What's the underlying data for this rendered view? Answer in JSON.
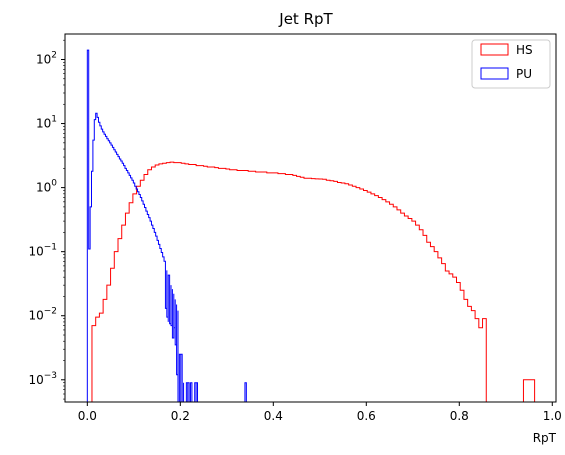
{
  "chart_data": {
    "type": "histogram",
    "title": "Jet RpT",
    "xlabel": "RpT",
    "ylabel": "",
    "xlim": [
      -0.048,
      1.008
    ],
    "ylim": [
      0.00045,
      250
    ],
    "yscale": "log",
    "grid": false,
    "legend": {
      "placement": "top-right",
      "entries": [
        "HS",
        "PU"
      ]
    },
    "xticks": [
      0.0,
      0.2,
      0.4,
      0.6,
      0.8,
      1.0
    ],
    "xtick_labels": [
      "0.0",
      "0.2",
      "0.4",
      "0.6",
      "0.8",
      "1.0"
    ],
    "yticks": [
      0.001,
      0.01,
      0.1,
      1,
      10,
      100
    ],
    "ytick_labels": [
      {
        "base": "10",
        "exp": "−3"
      },
      {
        "base": "10",
        "exp": "−2"
      },
      {
        "base": "10",
        "exp": "−1"
      },
      {
        "base": "10",
        "exp": "0"
      },
      {
        "base": "10",
        "exp": "1"
      },
      {
        "base": "10",
        "exp": "2"
      }
    ],
    "series": [
      {
        "name": "HS",
        "color": "#ff0000",
        "bin_start": 0.01,
        "bin_width": 0.008,
        "values": [
          0.007,
          0.0095,
          0.011,
          0.018,
          0.03,
          0.055,
          0.1,
          0.16,
          0.26,
          0.4,
          0.58,
          0.8,
          1.05,
          1.3,
          1.6,
          1.9,
          2.1,
          2.25,
          2.35,
          2.4,
          2.45,
          2.5,
          2.45,
          2.45,
          2.4,
          2.35,
          2.3,
          2.3,
          2.2,
          2.2,
          2.15,
          2.1,
          2.1,
          2.05,
          2.0,
          2.0,
          1.95,
          1.9,
          1.9,
          1.85,
          1.85,
          1.85,
          1.8,
          1.8,
          1.75,
          1.75,
          1.75,
          1.7,
          1.7,
          1.7,
          1.65,
          1.65,
          1.6,
          1.6,
          1.55,
          1.5,
          1.45,
          1.4,
          1.4,
          1.38,
          1.37,
          1.36,
          1.35,
          1.3,
          1.28,
          1.25,
          1.2,
          1.18,
          1.15,
          1.1,
          1.05,
          1.0,
          0.95,
          0.9,
          0.85,
          0.8,
          0.75,
          0.7,
          0.65,
          0.6,
          0.55,
          0.5,
          0.45,
          0.4,
          0.36,
          0.33,
          0.3,
          0.26,
          0.22,
          0.18,
          0.14,
          0.12,
          0.1,
          0.08,
          0.065,
          0.05,
          0.045,
          0.04,
          0.033,
          0.025,
          0.018,
          0.014,
          0.012,
          0.009,
          0.0065,
          0.009,
          0.0,
          0.0,
          0.0,
          0.0,
          0.0,
          0.0,
          0.0,
          0.0,
          0.0,
          0.0,
          0.001,
          0.001,
          0.001,
          0.0
        ]
      },
      {
        "name": "PU",
        "color": "#0000ff",
        "bin_start": 0.0,
        "bin_width": 0.003,
        "values": [
          140,
          0.11,
          0.5,
          1.8,
          5.5,
          11.5,
          14.5,
          12.5,
          10.5,
          9.2,
          8.2,
          7.4,
          6.8,
          6.3,
          5.8,
          5.4,
          5.0,
          4.6,
          4.25,
          3.9,
          3.6,
          3.3,
          3.05,
          2.8,
          2.6,
          2.4,
          2.2,
          2.0,
          1.85,
          1.7,
          1.55,
          1.42,
          1.3,
          1.18,
          1.05,
          0.95,
          0.86,
          0.78,
          0.7,
          0.62,
          0.55,
          0.49,
          0.43,
          0.38,
          0.34,
          0.3,
          0.26,
          0.23,
          0.2,
          0.175,
          0.15,
          0.13,
          0.112,
          0.097,
          0.083,
          0.071,
          0.06,
          0.051,
          0.043,
          0.036,
          0.03,
          0.026,
          0.022,
          0.018,
          0.015,
          0.012,
          0.0,
          0.0,
          0.0,
          0.0,
          0.0,
          0.0,
          0.0,
          0.0,
          0.0,
          0.0,
          0.0,
          0.0,
          0.0,
          0.0,
          0.0,
          0.0,
          0.0,
          0.0,
          0.0,
          0.0,
          0.0,
          0.0,
          0.0,
          0.0,
          0.0,
          0.0,
          0.0,
          0.0,
          0.0,
          0.0,
          0.0,
          0.0,
          0.0,
          0.0,
          0.0,
          0.0,
          0.0,
          0.0,
          0.0,
          0.0,
          0.0,
          0.0,
          0.0,
          0.0,
          0.0,
          0.0,
          0.0,
          0.0
        ],
        "tail_bins": [
          [
            0.168,
            0.013
          ],
          [
            0.171,
            0.0095
          ],
          [
            0.174,
            0.008
          ],
          [
            0.177,
            0.0075
          ],
          [
            0.18,
            0.007
          ],
          [
            0.183,
            0.0045
          ],
          [
            0.186,
            0.0065
          ],
          [
            0.189,
            0.0035
          ],
          [
            0.192,
            0.0012
          ],
          [
            0.195,
            0.0
          ],
          [
            0.198,
            0.0025
          ],
          [
            0.201,
            0.0025
          ],
          [
            0.204,
            0.0012
          ],
          [
            0.207,
            0.0009
          ],
          [
            0.21,
            0.0
          ],
          [
            0.213,
            0.0009
          ],
          [
            0.216,
            0.0009
          ],
          [
            0.219,
            0.0
          ],
          [
            0.222,
            0.0009
          ],
          [
            0.225,
            0.0
          ],
          [
            0.228,
            0.0
          ],
          [
            0.231,
            0.0009
          ],
          [
            0.234,
            0.0009
          ],
          [
            0.237,
            0.0
          ],
          [
            0.24,
            0.0
          ],
          [
            0.243,
            0.0
          ],
          [
            0.246,
            0.0
          ],
          [
            0.249,
            0.0
          ],
          [
            0.252,
            0.0
          ],
          [
            0.255,
            0.0
          ],
          [
            0.258,
            0.0
          ],
          [
            0.261,
            0.0
          ],
          [
            0.264,
            0.0
          ],
          [
            0.267,
            0.0
          ],
          [
            0.27,
            0.0
          ],
          [
            0.273,
            0.0
          ],
          [
            0.276,
            0.0
          ],
          [
            0.279,
            0.0
          ],
          [
            0.282,
            0.0
          ],
          [
            0.285,
            0.0
          ],
          [
            0.288,
            0.0
          ],
          [
            0.291,
            0.0
          ],
          [
            0.294,
            0.0
          ],
          [
            0.297,
            0.0
          ],
          [
            0.3,
            0.0
          ],
          [
            0.303,
            0.0
          ],
          [
            0.306,
            0.0
          ],
          [
            0.309,
            0.0
          ],
          [
            0.312,
            0.0
          ],
          [
            0.315,
            0.0
          ],
          [
            0.318,
            0.0
          ],
          [
            0.321,
            0.0
          ],
          [
            0.324,
            0.0
          ],
          [
            0.327,
            0.0
          ],
          [
            0.33,
            0.0
          ],
          [
            0.333,
            0.0
          ],
          [
            0.336,
            0.0
          ],
          [
            0.339,
            0.0009
          ],
          [
            0.342,
            0.0
          ]
        ]
      }
    ]
  }
}
